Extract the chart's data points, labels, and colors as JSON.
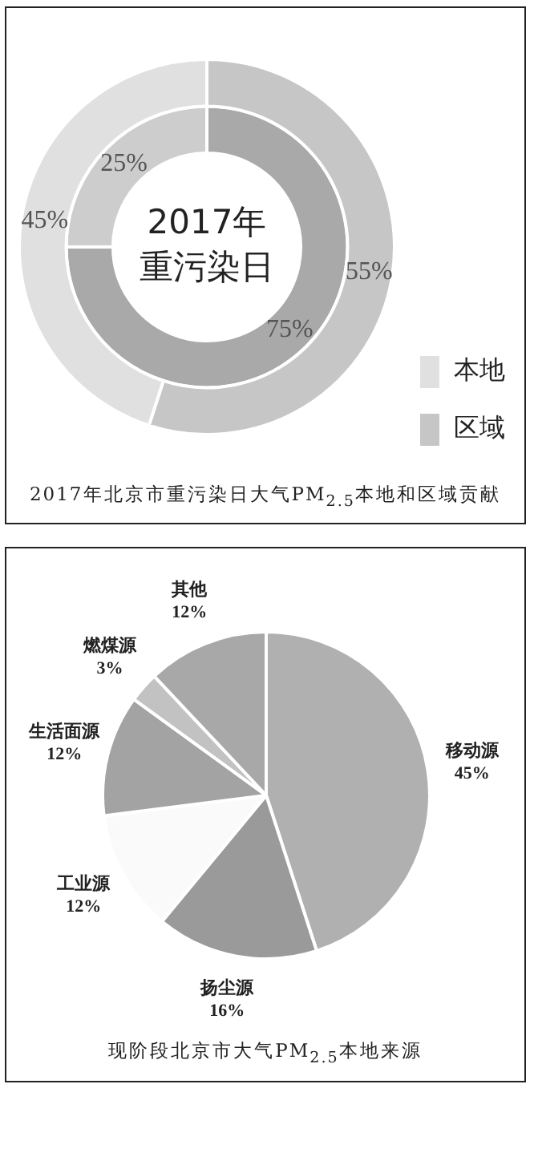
{
  "chart_data": [
    {
      "type": "donut",
      "title": "2017年北京市重污染日大气PM$_{2.5}$本地和区域贡献",
      "categories": [
        "区域",
        "本地"
      ],
      "annotations": [
        "2017年",
        "重污染日"
      ],
      "legend": "bottom right",
      "series": [
        {
          "values": [
            75,
            25
          ],
          "colors": [
            "#a9a9a9",
            "#cdcdcd"
          ],
          "value_labels": [
            "75%",
            "25%"
          ]
        },
        {
          "values": [
            55,
            45
          ],
          "colors": [
            "#c6c6c6",
            "#e0e0e0"
          ],
          "value_labels": [
            "55%",
            "45%"
          ]
        }
      ]
    },
    {
      "type": "pie",
      "title": "现阶段北京市大气PM$_{2.5}$本地来源",
      "categories": [
        "移动源",
        "扬尘源",
        "工业源",
        "生活面源",
        "燃煤源",
        "其他"
      ],
      "values": [
        45,
        16,
        12,
        12,
        3,
        12
      ],
      "colors": [
        "#b0b0b0",
        "#9a9a9a",
        "#fafafa",
        "#a3a3a3",
        "#c2c2c2",
        "#a8a8a8"
      ],
      "value_labels": [
        "45%",
        "16%",
        "12%",
        "12%",
        "3%",
        "12%"
      ]
    }
  ]
}
